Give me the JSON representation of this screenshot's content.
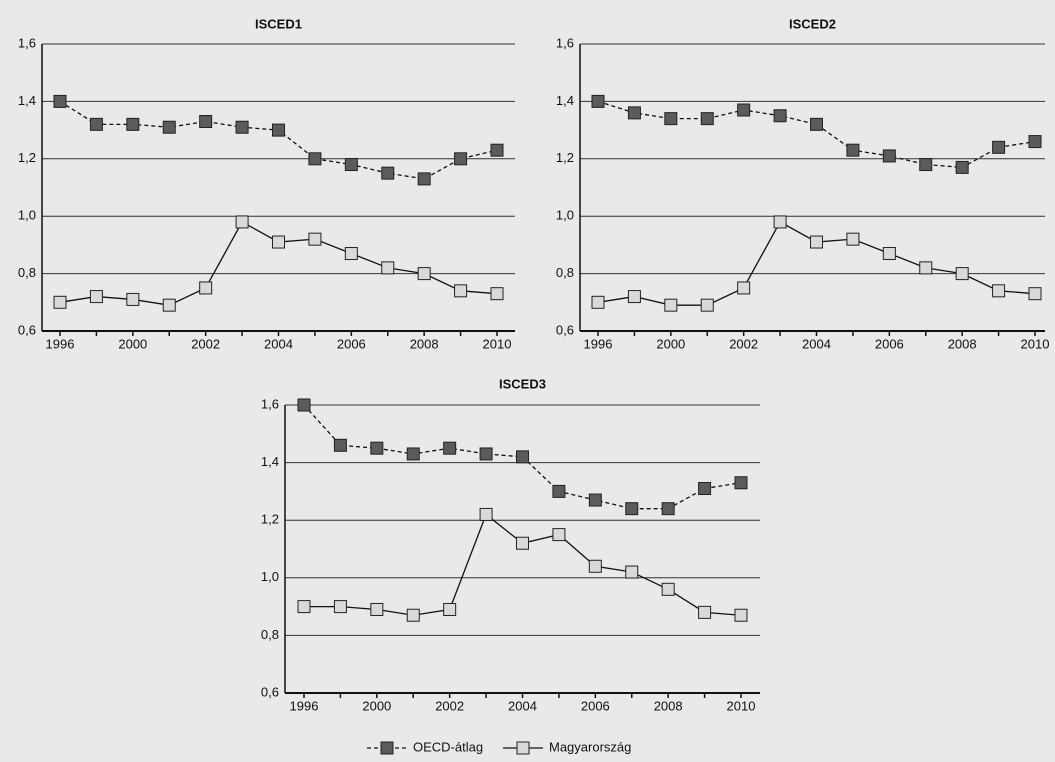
{
  "chart_data": [
    {
      "type": "line",
      "title": "ISCED1",
      "categories": [
        "1996",
        null,
        "2000",
        null,
        "2002",
        null,
        "2004",
        null,
        "2006",
        null,
        "2008",
        null,
        "2010"
      ],
      "ylim": [
        0.6,
        1.6
      ],
      "yticks": [
        {
          "value": 0.6,
          "label": "0,6"
        },
        {
          "value": 0.8,
          "label": "0,8"
        },
        {
          "value": 1.0,
          "label": "1,0"
        },
        {
          "value": 1.2,
          "label": "1,2"
        },
        {
          "value": 1.4,
          "label": "1,4"
        },
        {
          "value": 1.6,
          "label": "1,6"
        }
      ],
      "grid": true,
      "series": [
        {
          "name": "OECD-átlag",
          "color": "#5b5b5b",
          "line_style": "dashed",
          "values": [
            1.4,
            1.32,
            1.32,
            1.31,
            1.33,
            1.31,
            1.3,
            1.2,
            1.18,
            1.15,
            1.13,
            1.2,
            1.23
          ]
        },
        {
          "name": "Magyarország",
          "color": "#d9d9d9",
          "line_style": "solid",
          "values": [
            0.7,
            0.72,
            0.71,
            0.69,
            0.75,
            0.98,
            0.91,
            0.92,
            0.87,
            0.82,
            0.8,
            0.74,
            0.73
          ]
        }
      ]
    },
    {
      "type": "line",
      "title": "ISCED2",
      "categories": [
        "1996",
        null,
        "2000",
        null,
        "2002",
        null,
        "2004",
        null,
        "2006",
        null,
        "2008",
        null,
        "2010"
      ],
      "ylim": [
        0.6,
        1.6
      ],
      "yticks": [
        {
          "value": 0.6,
          "label": "0,6"
        },
        {
          "value": 0.8,
          "label": "0,8"
        },
        {
          "value": 1.0,
          "label": "1,0"
        },
        {
          "value": 1.2,
          "label": "1,2"
        },
        {
          "value": 1.4,
          "label": "1,4"
        },
        {
          "value": 1.6,
          "label": "1,6"
        }
      ],
      "grid": true,
      "series": [
        {
          "name": "OECD-átlag",
          "color": "#5b5b5b",
          "line_style": "dashed",
          "values": [
            1.4,
            1.36,
            1.34,
            1.34,
            1.37,
            1.35,
            1.32,
            1.23,
            1.21,
            1.18,
            1.17,
            1.24,
            1.26
          ]
        },
        {
          "name": "Magyarország",
          "color": "#d9d9d9",
          "line_style": "solid",
          "values": [
            0.7,
            0.72,
            0.69,
            0.69,
            0.75,
            0.98,
            0.91,
            0.92,
            0.87,
            0.82,
            0.8,
            0.74,
            0.73
          ]
        }
      ]
    },
    {
      "type": "line",
      "title": "ISCED3",
      "categories": [
        "1996",
        null,
        "2000",
        null,
        "2002",
        null,
        "2004",
        null,
        "2006",
        null,
        "2008",
        null,
        "2010"
      ],
      "ylim": [
        0.6,
        1.6
      ],
      "yticks": [
        {
          "value": 0.6,
          "label": "0,6"
        },
        {
          "value": 0.8,
          "label": "0,8"
        },
        {
          "value": 1.0,
          "label": "1,0"
        },
        {
          "value": 1.2,
          "label": "1,2"
        },
        {
          "value": 1.4,
          "label": "1,4"
        },
        {
          "value": 1.6,
          "label": "1,6"
        }
      ],
      "grid": true,
      "legend": "bottom",
      "series": [
        {
          "name": "OECD-átlag",
          "color": "#5b5b5b",
          "line_style": "dashed",
          "values": [
            1.6,
            1.46,
            1.45,
            1.43,
            1.45,
            1.43,
            1.42,
            1.3,
            1.27,
            1.24,
            1.24,
            1.31,
            1.33
          ]
        },
        {
          "name": "Magyarország",
          "color": "#d9d9d9",
          "line_style": "solid",
          "values": [
            0.9,
            0.9,
            0.89,
            0.87,
            0.89,
            1.22,
            1.12,
            1.15,
            1.04,
            1.02,
            0.96,
            0.88,
            0.87
          ]
        }
      ]
    }
  ]
}
